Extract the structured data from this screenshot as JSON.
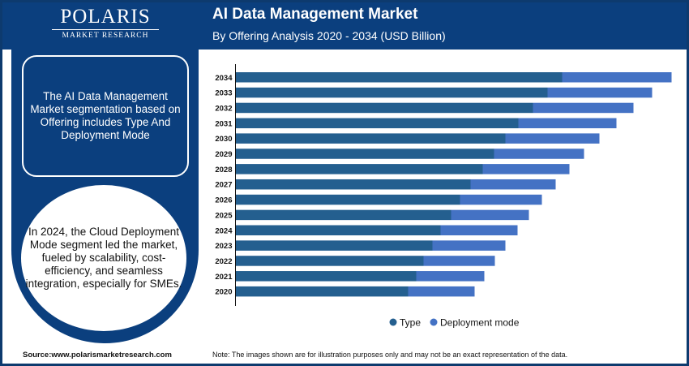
{
  "brand": {
    "logo_name": "POLARIS",
    "logo_sub": "MARKET RESEARCH"
  },
  "header": {
    "title": "AI Data Management Market",
    "subtitle": "By Offering Analysis 2020 - 2034 (USD Billion)"
  },
  "side": {
    "box_text": "The AI Data Management Market segmentation based on Offering includes Type And Deployment Mode",
    "circle_text": "In 2024, the Cloud Deployment Mode segment led the market, fueled by scalability, cost-efficiency, and seamless integration, especially for SMEs."
  },
  "footer": {
    "source": "Source:www.polarismarketresearch.com",
    "note": "Note: The images shown are for illustration purposes only and may not be an exact representation of the data."
  },
  "colors": {
    "navy": "#0b3f7e",
    "type": "#245f8f",
    "deployment": "#4472c4"
  },
  "chart_data": {
    "type": "bar",
    "orientation": "horizontal",
    "stacked": true,
    "categories": [
      "2034",
      "2033",
      "2032",
      "2031",
      "2030",
      "2029",
      "2028",
      "2027",
      "2026",
      "2025",
      "2024",
      "2023",
      "2022",
      "2021",
      "2020"
    ],
    "series": [
      {
        "name": "Type",
        "color": "#245f8f",
        "values": [
          403,
          385,
          367,
          349,
          333,
          319,
          305,
          290,
          277,
          266,
          253,
          243,
          232,
          223,
          213
        ]
      },
      {
        "name": "Deployment mode",
        "color": "#4472c4",
        "values": [
          135,
          129,
          124,
          121,
          116,
          111,
          107,
          105,
          101,
          96,
          95,
          90,
          88,
          84,
          82
        ]
      }
    ],
    "xlim": [
      0,
      545
    ],
    "grid": false,
    "legend": "bottom",
    "note": "values are relative estimates; no value axis printed"
  }
}
